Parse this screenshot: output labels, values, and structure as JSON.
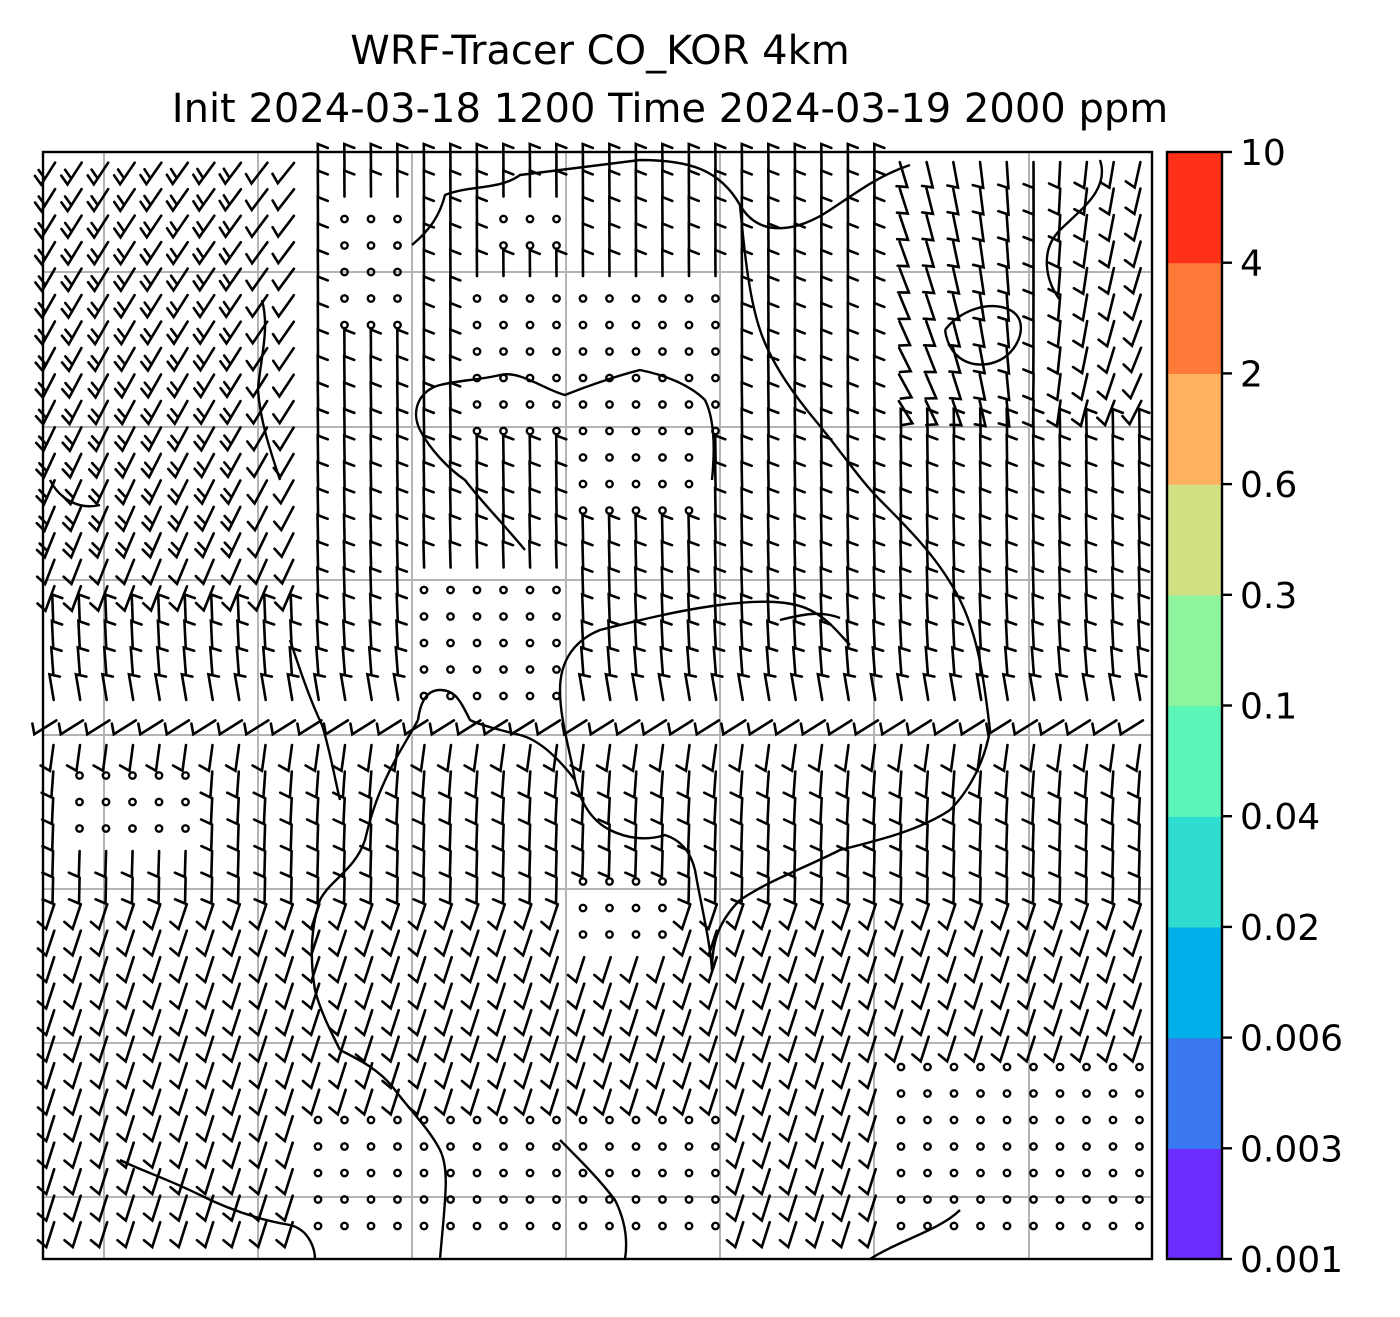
{
  "title": {
    "line1": "WRF-Tracer CO_KOR 4km",
    "line2": "Init 2024-03-18 1200 Time 2024-03-19 2000 ppm"
  },
  "colorbar": {
    "levels": [
      "0.001",
      "0.003",
      "0.006",
      "0.02",
      "0.04",
      "0.1",
      "0.3",
      "0.6",
      "2",
      "4",
      "10"
    ],
    "colors": [
      "#6a2cff",
      "#3a78f0",
      "#00b0e8",
      "#2fdcd0",
      "#5cf5b8",
      "#8ef59e",
      "#d2e083",
      "#ffb060",
      "#ff7a38",
      "#ff3018"
    ]
  },
  "map": {
    "gridlines": true,
    "symbols": "wind-barbs",
    "calm_marker": "circle"
  }
}
